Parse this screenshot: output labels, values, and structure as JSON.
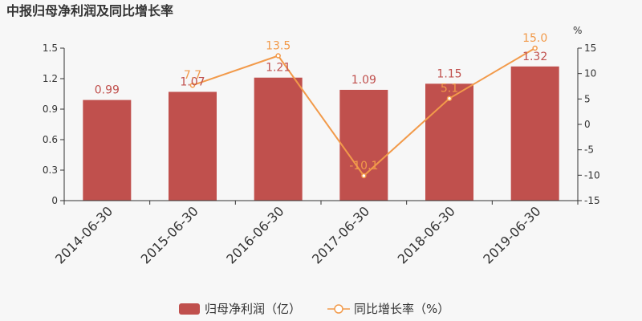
{
  "chart_data": {
    "type": "bar",
    "title": "中报归母净利润及同比增长率",
    "categories": [
      "2014-06-30",
      "2015-06-30",
      "2016-06-30",
      "2017-06-30",
      "2018-06-30",
      "2019-06-30"
    ],
    "series": [
      {
        "name": "归母净利润（亿）",
        "type": "bar",
        "axis": "left",
        "values": [
          0.99,
          1.07,
          1.21,
          1.09,
          1.15,
          1.32
        ],
        "labels": [
          "0.99",
          "1.07",
          "1.21",
          "1.09",
          "1.15",
          "1.32"
        ]
      },
      {
        "name": "同比增长率（%）",
        "type": "line",
        "axis": "right",
        "values": [
          null,
          7.7,
          13.5,
          -10.1,
          5.1,
          15.0
        ],
        "labels": [
          "",
          "7.7",
          "13.5",
          "-10.1",
          "5.1",
          "15.0"
        ]
      }
    ],
    "y_left": {
      "ylim": [
        0,
        1.5
      ],
      "ticks": [
        "0",
        "0.3",
        "0.6",
        "0.9",
        "1.2",
        "1.5"
      ]
    },
    "y_right": {
      "ylim": [
        -15,
        15
      ],
      "ticks": [
        "-15",
        "-10",
        "-5",
        "0",
        "5",
        "10",
        "15"
      ],
      "unit": "%"
    },
    "grid": false,
    "legend_position": "bottom"
  },
  "colors": {
    "bar": "#c0504d",
    "line": "#f29a4a",
    "axis": "#333333",
    "background": "#f7f7f7"
  }
}
